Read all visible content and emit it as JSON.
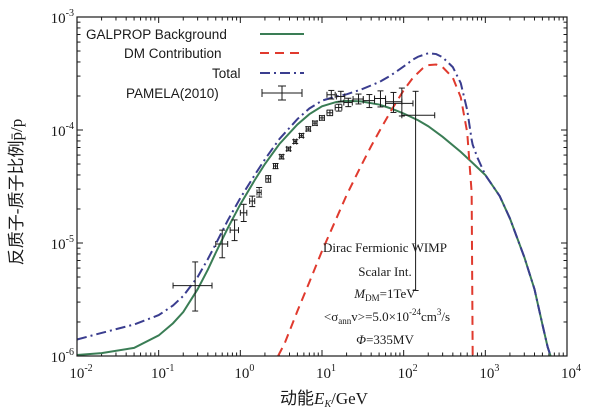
{
  "chart_data": {
    "type": "line",
    "xscale": "log",
    "yscale": "log",
    "xlim": [
      0.01,
      10000
    ],
    "ylim": [
      1e-06,
      0.001
    ],
    "xlabel": "动能E_K/GeV",
    "ylabel": "反质子-质子比例p̄/p",
    "x_ticks": [
      {
        "value": 0.01,
        "base": "10",
        "exp": "-2"
      },
      {
        "value": 0.1,
        "base": "10",
        "exp": "-1"
      },
      {
        "value": 1,
        "base": "10",
        "exp": "0"
      },
      {
        "value": 10,
        "base": "10",
        "exp": "1"
      },
      {
        "value": 100,
        "base": "10",
        "exp": "2"
      },
      {
        "value": 1000,
        "base": "10",
        "exp": "3"
      },
      {
        "value": 10000,
        "base": "10",
        "exp": "4"
      }
    ],
    "y_ticks": [
      {
        "value": 1e-06,
        "base": "10",
        "exp": "-6"
      },
      {
        "value": 1e-05,
        "base": "10",
        "exp": "-5"
      },
      {
        "value": 0.0001,
        "base": "10",
        "exp": "-4"
      },
      {
        "value": 0.001,
        "base": "10",
        "exp": "-3"
      }
    ],
    "legend": {
      "position": "top-left",
      "entries": [
        {
          "label": "GALPROP Background",
          "series": "background"
        },
        {
          "label": "DM Contribution",
          "series": "dm"
        },
        {
          "label": "Total",
          "series": "total"
        },
        {
          "label": "PAMELA(2010)",
          "series": "pamela"
        }
      ]
    },
    "series": [
      {
        "key": "background",
        "name": "GALPROP Background",
        "color": "#3a7d55",
        "style": "solid",
        "x": [
          0.01,
          0.02,
          0.05,
          0.1,
          0.15,
          0.2,
          0.3,
          0.4,
          0.5,
          0.7,
          1,
          1.5,
          2,
          3,
          5,
          7,
          10,
          15,
          20,
          30,
          50,
          70,
          100,
          150,
          200,
          300,
          500,
          700,
          1000,
          1500,
          2000,
          3000,
          4000,
          5000,
          5800,
          6300
        ],
        "y": [
          1.02e-06,
          1.06e-06,
          1.18e-06,
          1.52e-06,
          1.95e-06,
          2.45e-06,
          3.9e-06,
          5.8e-06,
          8.2e-06,
          1.35e-05,
          2.2e-05,
          3.6e-05,
          5e-05,
          7.5e-05,
          0.000112,
          0.000138,
          0.000162,
          0.000177,
          0.000181,
          0.000179,
          0.000168,
          0.000155,
          0.00014,
          0.000122,
          0.000108,
          8.7e-05,
          6.4e-05,
          5.1e-05,
          4e-05,
          2.6e-05,
          1.65e-05,
          7.5e-06,
          3.9e-06,
          1.9e-06,
          1.2e-06,
          1e-06
        ]
      },
      {
        "key": "dm",
        "name": "DM Contribution",
        "color": "#e03a2e",
        "style": "dashed",
        "x": [
          2.9,
          3.5,
          5,
          7,
          10,
          15,
          20,
          30,
          40,
          50,
          70,
          100,
          130,
          170,
          200,
          250,
          300,
          400,
          500,
          600,
          680,
          700
        ],
        "y": [
          1e-06,
          1.3e-06,
          2.5e-06,
          4.5e-06,
          8.5e-06,
          1.65e-05,
          2.65e-05,
          4.8e-05,
          7.2e-05,
          9.65e-05,
          0.000148,
          0.000225,
          0.00029,
          0.00035,
          0.000375,
          0.00038,
          0.00036,
          0.00029,
          0.000195,
          9.5e-05,
          2.8e-05,
          1e-06
        ]
      },
      {
        "key": "total",
        "name": "Total",
        "color": "#3a3d8f",
        "style": "dashdot",
        "x": [
          0.01,
          0.02,
          0.05,
          0.1,
          0.15,
          0.2,
          0.3,
          0.4,
          0.5,
          0.7,
          1,
          1.5,
          2,
          3,
          5,
          7,
          10,
          15,
          20,
          30,
          50,
          70,
          100,
          130,
          150,
          200,
          250,
          300,
          400,
          500,
          600,
          680,
          700,
          800,
          1000,
          1500,
          2000,
          3000,
          4000,
          5000,
          5800,
          6300
        ],
        "y": [
          1.4e-06,
          1.6e-06,
          1.9e-06,
          2.3e-06,
          2.8e-06,
          3.4e-06,
          5e-06,
          7.2e-06,
          9.8e-06,
          1.58e-05,
          2.5e-05,
          4e-05,
          5.5e-05,
          8.3e-05,
          0.000125,
          0.000155,
          0.000182,
          0.000198,
          0.000207,
          0.000228,
          0.000265,
          0.000305,
          0.000365,
          0.00042,
          0.000445,
          0.000478,
          0.00047,
          0.00044,
          0.00036,
          0.00026,
          0.00015,
          8.2e-05,
          7.4e-05,
          5.7e-05,
          4e-05,
          2.6e-05,
          1.65e-05,
          7.5e-06,
          3.9e-06,
          1.9e-06,
          1.2e-06,
          1e-06
        ]
      }
    ],
    "pamela": {
      "name": "PAMELA(2010)",
      "color": "#1a1a1a",
      "points": [
        {
          "x": 0.28,
          "xlo": 0.15,
          "xhi": 0.45,
          "y": 4.2e-06,
          "ylo": 2.5e-06,
          "yhi": 6.8e-06
        },
        {
          "x": 0.6,
          "xlo": 0.5,
          "xhi": 0.7,
          "y": 9.8e-06,
          "ylo": 7.4e-06,
          "yhi": 1.3e-05
        },
        {
          "x": 0.85,
          "xlo": 0.75,
          "xhi": 0.95,
          "y": 1.3e-05,
          "ylo": 1.05e-05,
          "yhi": 1.6e-05
        },
        {
          "x": 1.1,
          "xlo": 1.0,
          "xhi": 1.2,
          "y": 1.85e-05,
          "ylo": 1.55e-05,
          "yhi": 2.2e-05
        },
        {
          "x": 1.4,
          "xlo": 1.3,
          "xhi": 1.5,
          "y": 2.35e-05,
          "ylo": 2.1e-05,
          "yhi": 2.6e-05
        },
        {
          "x": 1.7,
          "xlo": 1.6,
          "xhi": 1.8,
          "y": 2.8e-05,
          "ylo": 2.55e-05,
          "yhi": 3.1e-05
        },
        {
          "x": 2.2,
          "xlo": 2.05,
          "xhi": 2.35,
          "y": 3.7e-05,
          "ylo": 3.45e-05,
          "yhi": 3.95e-05
        },
        {
          "x": 2.7,
          "xlo": 2.55,
          "xhi": 2.85,
          "y": 4.8e-05,
          "ylo": 4.55e-05,
          "yhi": 5.05e-05
        },
        {
          "x": 3.2,
          "xlo": 3.05,
          "xhi": 3.35,
          "y": 5.8e-05,
          "ylo": 5.55e-05,
          "yhi": 6.05e-05
        },
        {
          "x": 3.9,
          "xlo": 3.7,
          "xhi": 4.1,
          "y": 6.8e-05,
          "ylo": 6.55e-05,
          "yhi": 7.05e-05
        },
        {
          "x": 4.7,
          "xlo": 4.5,
          "xhi": 4.9,
          "y": 7.9e-05,
          "ylo": 7.6e-05,
          "yhi": 8.2e-05
        },
        {
          "x": 5.6,
          "xlo": 5.3,
          "xhi": 5.9,
          "y": 8.9e-05,
          "ylo": 8.6e-05,
          "yhi": 9.3e-05
        },
        {
          "x": 6.8,
          "xlo": 6.4,
          "xhi": 7.2,
          "y": 0.000102,
          "ylo": 9.8e-05,
          "yhi": 0.000107
        },
        {
          "x": 8.2,
          "xlo": 7.7,
          "xhi": 8.7,
          "y": 0.000115,
          "ylo": 0.00011,
          "yhi": 0.00012
        },
        {
          "x": 10,
          "xlo": 9.3,
          "xhi": 10.7,
          "y": 0.000128,
          "ylo": 0.000122,
          "yhi": 0.000134
        },
        {
          "x": 12.5,
          "xlo": 11.5,
          "xhi": 13.5,
          "y": 0.000142,
          "ylo": 0.000134,
          "yhi": 0.00015
        },
        {
          "x": 16,
          "xlo": 14.5,
          "xhi": 17.5,
          "y": 0.000158,
          "ylo": 0.000147,
          "yhi": 0.000169
        },
        {
          "x": 21,
          "xlo": 18.5,
          "xhi": 23.5,
          "y": 0.000175,
          "ylo": 0.000161,
          "yhi": 0.000191
        },
        {
          "x": 28,
          "xlo": 24,
          "xhi": 32,
          "y": 0.000188,
          "ylo": 0.00017,
          "yhi": 0.000208
        },
        {
          "x": 38,
          "xlo": 32,
          "xhi": 44,
          "y": 0.000182,
          "ylo": 0.000158,
          "yhi": 0.000206
        },
        {
          "x": 13,
          "xlo": 11.5,
          "xhi": 14.5,
          "y": 0.000205,
          "ylo": 0.000188,
          "yhi": 0.000224
        },
        {
          "x": 17,
          "xlo": 15,
          "xhi": 19,
          "y": 0.000198,
          "ylo": 0.000178,
          "yhi": 0.00022
        },
        {
          "x": 52,
          "xlo": 44,
          "xhi": 60,
          "y": 0.00019,
          "ylo": 0.00016,
          "yhi": 0.000222
        },
        {
          "x": 75,
          "xlo": 60,
          "xhi": 95,
          "y": 0.000178,
          "ylo": 0.000143,
          "yhi": 0.000215
        },
        {
          "x": 95,
          "xlo": 60,
          "xhi": 130,
          "y": 0.000172,
          "ylo": 0.000133,
          "yhi": 0.000235
        },
        {
          "x": 140,
          "xlo": 95,
          "xhi": 240,
          "y": 0.000135,
          "ylo": 3.8e-06,
          "yhi": 0.00022
        }
      ]
    },
    "annotation": {
      "line1": "Dirac Fermionic WIMP",
      "line2": "Scalar Int.",
      "mdm_sym": "M",
      "mdm_sub": "DM",
      "mdm_val": "=1TeV",
      "sigma_open": "<σ",
      "sigma_sub": "ann",
      "sigma_mid": "v>=5.0×10",
      "sigma_exp": "-24",
      "sigma_unit": "cm",
      "sigma_unit_exp": "3",
      "sigma_tail": "/s",
      "phi_sym": "Φ",
      "phi_val": "=335MV"
    }
  }
}
